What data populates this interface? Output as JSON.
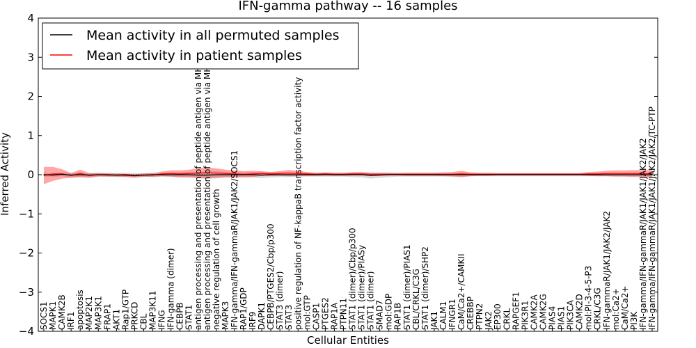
{
  "chart_data": {
    "type": "line",
    "title": "IFN-gamma pathway -- 16 samples",
    "xlabel": "Cellular Entities",
    "ylabel": "Inferred Activity",
    "ylim": [
      -4,
      4
    ],
    "yticks": [
      -4,
      -3,
      -2,
      -1,
      0,
      1,
      2,
      3,
      4
    ],
    "ytick_labels": [
      "−4",
      "−3",
      "−2",
      "−1",
      "0",
      "1",
      "2",
      "3",
      "4"
    ],
    "grid": false,
    "legend_position": "top-left",
    "categories": [
      "SOCS1",
      "MAPK1",
      "CAMK2B",
      "IRF1",
      "apoptosis",
      "MAP2K1",
      "MAP3K1",
      "FRAP1",
      "AKT1",
      "Rap1/GTP",
      "PRKCD",
      "CBL",
      "MAP3K11",
      "IFNG",
      "IFN-gamma (dimer)",
      "CEBPB",
      "STAT1",
      "antigen processing and presentation of peptide antigen via MHC class I",
      "antigen processing and presentation of peptide antigen via MHC class II",
      "negative regulation of cell growth",
      "MAPK3",
      "IFN-gamma/IFN-gammaR/JAK1/JAK2/SOCS1",
      "RAP1/GDP",
      "IRF9",
      "DAPK1",
      "CEBPB/PTGES2/Cbp/p300",
      "STAT3 (dimer)",
      "STAT3",
      "positive regulation of NF-kappaB transcription factor activity",
      "mol:GTP",
      "CASP1",
      "PTGES2",
      "RAP1A",
      "PTPN11",
      "STAT1 (dimer)/Cbp/p300",
      "STAT1 (dimer)/PIASy",
      "STAT1 (dimer)",
      "SMAD7",
      "mol:GDP",
      "RAP1B",
      "STAT1 (dimer)/PIAS1",
      "CBL/CRKL/C3G",
      "STAT1 (dimer)/SHP2",
      "JAK1",
      "CALM1",
      "IFNGR1",
      "CaM/Ca2+/CAMKII",
      "CREBBP",
      "PTPN2",
      "JAK2",
      "EP300",
      "CRKL",
      "RAPGEF1",
      "PIK3R1",
      "CAMK2A",
      "CAMK2G",
      "PIAS4",
      "PIAS1",
      "PIK3CA",
      "CAMK2D",
      "mol:PI-3-4-5-P3",
      "CRKL/C3G",
      "IFN-gammaR/JAK1/JAK2/JAK2",
      "mol:Ca2+",
      "CaM/Ca2+",
      "PI3K",
      "IFN-gamma/IFN-gammaR/JAK1/JAK1/JAK2/JAK2",
      "IFN-gamma/IFN-gammaR/JAK1/JAK1/JAK2/JAK2/TC-PTP"
    ],
    "series": [
      {
        "name": "Mean activity in all permuted samples",
        "color": "#000000",
        "values": [
          0,
          -0.01,
          0.01,
          -0.01,
          0,
          -0.01,
          0,
          0,
          -0.01,
          0,
          -0.02,
          -0.01,
          0,
          0,
          0,
          0,
          0,
          -0.01,
          -0.01,
          0,
          0,
          0,
          0,
          0,
          -0.01,
          0,
          0,
          0,
          0,
          0,
          0,
          0,
          0,
          0,
          0,
          0,
          -0.02,
          -0.01,
          0,
          0,
          0,
          0,
          0,
          0,
          0,
          0,
          0,
          0,
          0,
          0,
          0,
          0,
          0,
          0,
          0,
          0,
          0,
          0,
          0,
          0,
          0,
          0,
          0,
          0,
          0,
          0,
          0,
          0
        ],
        "band": [
          0.05,
          0.04,
          0.05,
          0.06,
          0.05,
          0.05,
          0.04,
          0.05,
          0.05,
          0.05,
          0.06,
          0.05,
          0.05,
          0.05,
          0.05,
          0.06,
          0.07,
          0.08,
          0.1,
          0.09,
          0.07,
          0.06,
          0.06,
          0.07,
          0.08,
          0.07,
          0.06,
          0.06,
          0.05,
          0.05,
          0.05,
          0.05,
          0.05,
          0.05,
          0.06,
          0.07,
          0.08,
          0.07,
          0.06,
          0.05,
          0.05,
          0.05,
          0.05,
          0.05,
          0.04,
          0.04,
          0.05,
          0.04,
          0.04,
          0.04,
          0.04,
          0.04,
          0.04,
          0.04,
          0.04,
          0.04,
          0.04,
          0.04,
          0.04,
          0.04,
          0.04,
          0.04,
          0.04,
          0.04,
          0.04,
          0.04,
          0.04,
          0.04
        ]
      },
      {
        "name": "Mean activity in patient samples",
        "color": "#ff0000",
        "values": [
          -0.02,
          0.02,
          0.02,
          -0.02,
          0.03,
          -0.02,
          0,
          -0.01,
          -0.01,
          -0.02,
          -0.03,
          -0.01,
          -0.01,
          0.02,
          0.03,
          0.02,
          0.03,
          0.04,
          0.05,
          0.04,
          0.03,
          0.02,
          0.01,
          0.02,
          0.03,
          0.02,
          0.03,
          0.04,
          0.03,
          0.02,
          0.01,
          0.02,
          0.01,
          0.01,
          0.02,
          0.02,
          0.01,
          0.01,
          0.01,
          0.01,
          0.01,
          0.01,
          0.01,
          0.01,
          0.01,
          0.01,
          0.02,
          0.01,
          0.01,
          0.01,
          0.01,
          0.01,
          0.01,
          0.01,
          0.01,
          0.01,
          0.01,
          0.01,
          0.01,
          0.01,
          0.02,
          0.02,
          0.03,
          0.03,
          0.03,
          0.03,
          0.03,
          0.03
        ],
        "band": [
          0.22,
          0.18,
          0.12,
          0.06,
          0.1,
          0.06,
          0.05,
          0.04,
          0.04,
          0.04,
          0.04,
          0.04,
          0.05,
          0.06,
          0.08,
          0.09,
          0.1,
          0.12,
          0.14,
          0.12,
          0.1,
          0.09,
          0.08,
          0.08,
          0.06,
          0.05,
          0.06,
          0.08,
          0.07,
          0.05,
          0.04,
          0.04,
          0.04,
          0.04,
          0.04,
          0.04,
          0.03,
          0.03,
          0.03,
          0.03,
          0.04,
          0.04,
          0.04,
          0.04,
          0.05,
          0.06,
          0.08,
          0.05,
          0.04,
          0.04,
          0.03,
          0.03,
          0.03,
          0.03,
          0.03,
          0.03,
          0.03,
          0.03,
          0.03,
          0.03,
          0.05,
          0.06,
          0.07,
          0.08,
          0.08,
          0.09,
          0.09,
          0.09
        ]
      }
    ]
  }
}
